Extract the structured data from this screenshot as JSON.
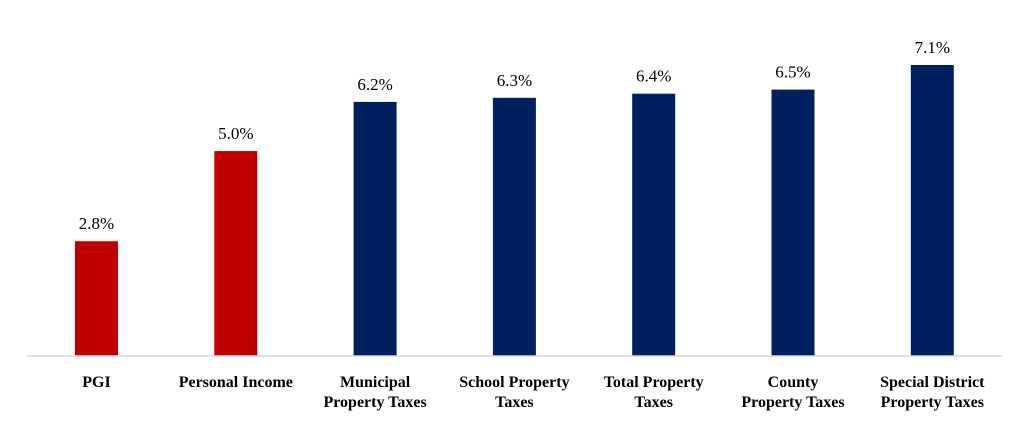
{
  "chart_data": {
    "type": "bar",
    "categories": [
      [
        "PGI"
      ],
      [
        "Personal Income"
      ],
      [
        "Municipal",
        "Property Taxes"
      ],
      [
        "School Property",
        "Taxes"
      ],
      [
        "Total Property",
        "Taxes"
      ],
      [
        "County",
        "Property Taxes"
      ],
      [
        "Special District",
        "Property Taxes"
      ]
    ],
    "values": [
      2.8,
      5.0,
      6.2,
      6.3,
      6.4,
      6.5,
      7.1
    ],
    "value_labels": [
      "2.8%",
      "5.0%",
      "6.2%",
      "6.3%",
      "6.4%",
      "6.5%",
      "7.1%"
    ],
    "colors": [
      "#c00000",
      "#c00000",
      "#002060",
      "#002060",
      "#002060",
      "#002060",
      "#002060"
    ],
    "ylim": [
      0,
      7.1
    ],
    "grid": false,
    "legend": "none",
    "axis_color": "#d9d9d9"
  }
}
